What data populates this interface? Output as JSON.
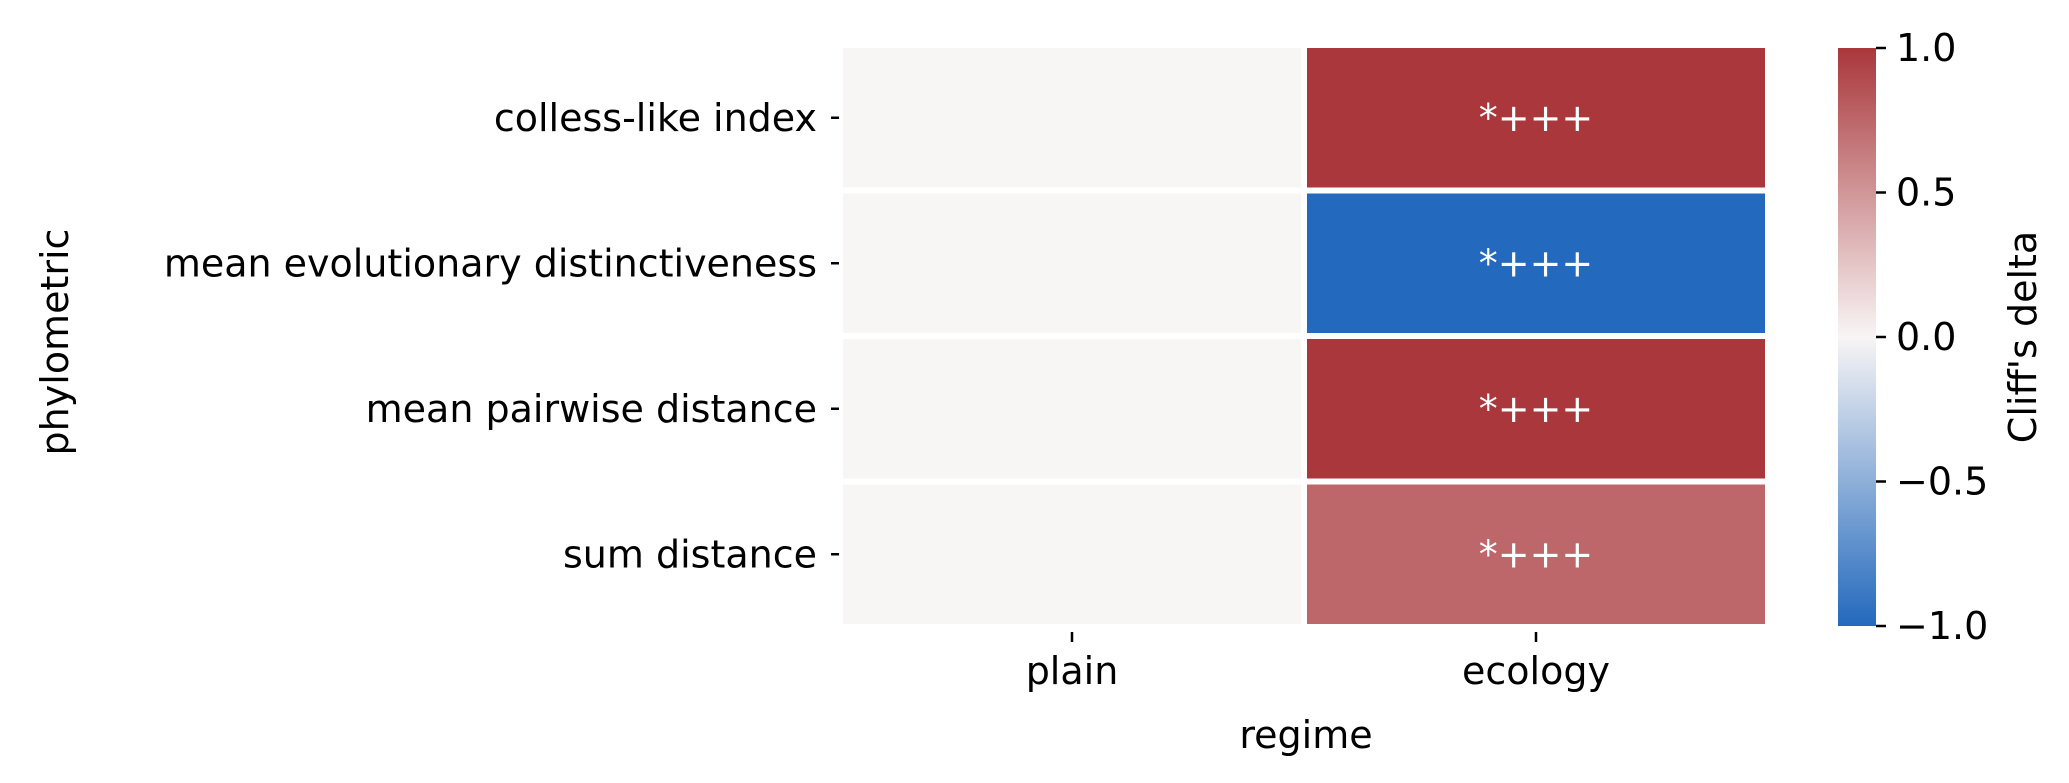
{
  "chart_data": {
    "type": "heatmap",
    "title": "",
    "xlabel": "regime",
    "ylabel": "phylometric",
    "x_categories": [
      "plain",
      "ecology"
    ],
    "y_categories": [
      "colless-like index",
      "mean evolutionary distinctiveness",
      "mean pairwise distance",
      "sum distance"
    ],
    "values": [
      [
        0.0,
        1.0
      ],
      [
        0.0,
        -1.0
      ],
      [
        0.0,
        1.0
      ],
      [
        0.0,
        0.75
      ]
    ],
    "annotations": [
      [
        "",
        "*+++"
      ],
      [
        "",
        "*+++"
      ],
      [
        "",
        "*+++"
      ],
      [
        "",
        "*+++"
      ]
    ],
    "colorbar": {
      "label": "Cliff's delta",
      "vmin": -1.0,
      "vmax": 1.0,
      "ticks": [
        1.0,
        0.5,
        0.0,
        -0.5,
        -1.0
      ],
      "tick_labels": [
        "1.0",
        "0.5",
        "0.0",
        "−0.5",
        "−1.0"
      ],
      "colormap": "vlag",
      "colors": {
        "low": "#2369bd",
        "mid": "#f8f5f5",
        "high": "#a9373b"
      }
    },
    "grid": false,
    "legend": "colorbar-right"
  }
}
